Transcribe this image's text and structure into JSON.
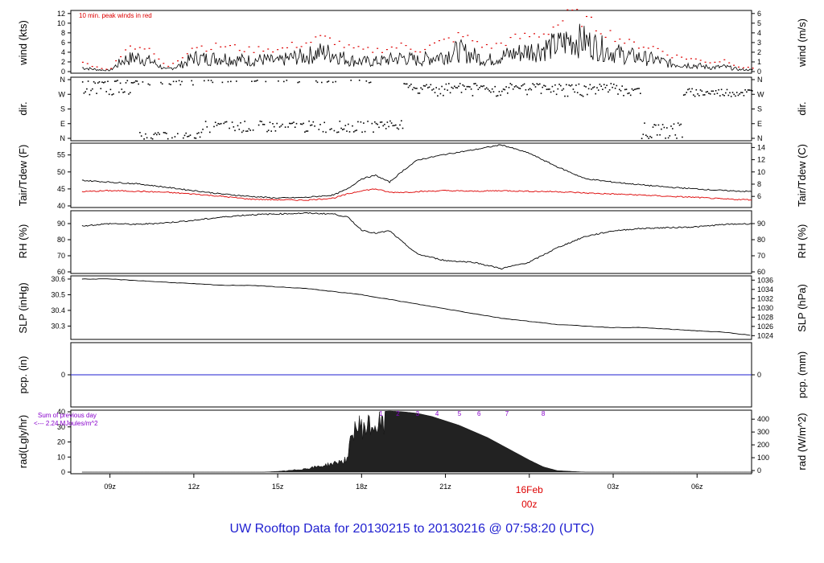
{
  "title": "UW Rooftop Data for 20130215  to  20130216 @ 07:58:20  (UTC)",
  "colors": {
    "title": "#1f1fd0",
    "axis": "#000000",
    "peak": "#dd0000",
    "dew": "#dd0000",
    "precip": "#1f1fd0",
    "solar": "#8800cc",
    "date": "#dd0000"
  },
  "time_axis": {
    "ticks": [
      "09z",
      "12z",
      "15z",
      "18z",
      "21z",
      "00z",
      "03z",
      "06z"
    ],
    "date_label": "16Feb",
    "date_label_tick": "00z"
  },
  "chart_data": [
    {
      "type": "line",
      "panel": "wind",
      "ylabel_left": "wind (kts)",
      "ylabel_right": "wind (m/s)",
      "yticks_left": [
        "0",
        "2",
        "4",
        "6",
        "8",
        "10",
        "12"
      ],
      "yticks_right": [
        "0",
        "1",
        "2",
        "3",
        "4",
        "5",
        "6"
      ],
      "ylim": [
        0,
        12.3
      ],
      "annotation": "10 min. peak winds in red",
      "series": [
        {
          "x_hours": [
            0,
            0.5,
            1,
            1.5,
            2,
            2.5,
            3,
            3.5,
            4,
            4.5,
            5,
            5.5,
            6,
            6.5,
            7,
            7.5,
            8,
            8.5,
            9,
            9.5,
            10,
            10.5,
            11,
            11.5,
            12,
            12.5,
            13,
            13.5,
            14,
            14.5,
            15,
            15.5,
            16,
            16.5,
            17,
            17.5,
            18,
            18.5,
            19,
            19.5,
            20,
            20.5,
            21,
            21.5,
            22,
            22.5,
            23,
            23.5,
            24
          ],
          "values": [
            1,
            0.5,
            0.3,
            3,
            3.5,
            2.5,
            0.5,
            1.5,
            3.5,
            3.2,
            3.5,
            3,
            2.8,
            3,
            2.5,
            3.5,
            3.8,
            4.8,
            4.5,
            3,
            2.5,
            2.5,
            3,
            3.5,
            2.8,
            3.5,
            4.2,
            5.2,
            4,
            2.8,
            3.8,
            4.5,
            5.2,
            5.8,
            6.5,
            8,
            7.5,
            6,
            4.8,
            4,
            3.5,
            3,
            2,
            1.8,
            1.5,
            1,
            1.2,
            0.5,
            0.4
          ]
        },
        {
          "name": "peak",
          "x_hours": [
            0,
            0.5,
            1,
            1.5,
            2,
            2.5,
            3,
            3.5,
            4,
            4.5,
            5,
            5.5,
            6,
            6.5,
            7,
            7.5,
            8,
            8.5,
            9,
            9.5,
            10,
            10.5,
            11,
            11.5,
            12,
            12.5,
            13,
            13.5,
            14,
            14.5,
            15,
            15.5,
            16,
            16.5,
            17,
            17.5,
            18,
            18.5,
            19,
            19.5,
            20,
            20.5,
            21,
            21.5,
            22,
            22.5,
            23,
            23.5,
            24
          ],
          "values": [
            2,
            1,
            0.5,
            5,
            5.5,
            4,
            1,
            3,
            5.5,
            5,
            5.5,
            5,
            4.5,
            5,
            4.5,
            5.5,
            6,
            7,
            6.5,
            5,
            4.5,
            4.5,
            5,
            5.5,
            4.5,
            5.5,
            6.5,
            7.5,
            6.5,
            5,
            6,
            7,
            7.5,
            8,
            10,
            12,
            10.5,
            9,
            7.5,
            6,
            5.5,
            5,
            3.5,
            3,
            2.5,
            2,
            2.5,
            1,
            0.8
          ]
        }
      ]
    },
    {
      "type": "scatter",
      "panel": "dir",
      "ylabel_left": "dir.",
      "ylabel_right": "dir.",
      "yticks": [
        "N",
        "E",
        "S",
        "W",
        "N"
      ],
      "ylim": [
        0,
        360
      ]
    },
    {
      "type": "line",
      "panel": "temperature",
      "ylabel_left": "Tair/Tdew (F)",
      "ylabel_right": "Tair/Tdew (C)",
      "yticks_left": [
        "40",
        "45",
        "50",
        "55"
      ],
      "yticks_right": [
        "6",
        "8",
        "10",
        "12",
        "14"
      ],
      "ylim": [
        40,
        58
      ],
      "series": [
        {
          "name": "Tair",
          "x_hours": [
            0,
            1,
            2,
            3,
            4,
            5,
            6,
            7,
            8,
            9,
            9.5,
            10,
            10.5,
            11,
            11.5,
            12,
            13,
            14,
            15,
            16,
            17,
            18,
            19,
            20,
            21,
            22,
            23,
            24
          ],
          "values": [
            47.5,
            47,
            46.5,
            45.5,
            44.5,
            43.5,
            42.8,
            42.3,
            42.5,
            43.2,
            45,
            48,
            49,
            47,
            50.5,
            53.5,
            55.2,
            56.5,
            58,
            55.5,
            51.5,
            48,
            47,
            46.2,
            45.5,
            45,
            44.5,
            44.2
          ]
        },
        {
          "name": "Tdew",
          "x_hours": [
            0,
            1,
            2,
            3,
            4,
            5,
            6,
            7,
            8,
            9,
            9.5,
            10,
            10.5,
            11,
            11.5,
            12,
            13,
            14,
            15,
            16,
            17,
            18,
            19,
            20,
            21,
            22,
            23,
            24
          ],
          "values": [
            44.2,
            44.5,
            44.3,
            44,
            43.5,
            42.8,
            42,
            41.8,
            41.7,
            42.3,
            43.5,
            44.5,
            45,
            44,
            44,
            44.2,
            44.5,
            44.3,
            44.5,
            44.3,
            44.2,
            43.8,
            43.5,
            43.2,
            42.8,
            42.5,
            42,
            41.8
          ]
        }
      ]
    },
    {
      "type": "line",
      "panel": "rh",
      "ylabel_left": "RH (%)",
      "ylabel_right": "RH (%)",
      "yticks": [
        "60",
        "70",
        "80",
        "90"
      ],
      "ylim": [
        60,
        97
      ],
      "series": [
        {
          "x_hours": [
            0,
            1,
            2,
            3,
            4,
            5,
            6,
            7,
            8,
            9,
            9.5,
            10,
            10.5,
            11,
            11.5,
            12,
            13,
            14,
            15,
            16,
            17,
            18,
            19,
            20,
            21,
            22,
            23,
            24
          ],
          "values": [
            88.5,
            90,
            89.5,
            90.5,
            92,
            94,
            95.5,
            96,
            96.5,
            96,
            94,
            86,
            84,
            85.5,
            78,
            71,
            67,
            66,
            62,
            66,
            75,
            82,
            85.5,
            87,
            87.5,
            88,
            89.5,
            90
          ]
        }
      ]
    },
    {
      "type": "line",
      "panel": "slp",
      "ylabel_left": "SLP (inHg)",
      "ylabel_right": "SLP (hPa)",
      "yticks_left": [
        "30.3",
        "30.4",
        "30.5",
        "30.6"
      ],
      "yticks_right": [
        "1024",
        "1026",
        "1028",
        "1030",
        "1032",
        "1034",
        "1036"
      ],
      "ylim": [
        30.225,
        30.61
      ],
      "series": [
        {
          "x_hours": [
            0,
            1,
            2,
            3,
            4,
            5,
            6,
            7,
            8,
            9,
            10,
            11,
            12,
            13,
            14,
            15,
            16,
            17,
            18,
            19,
            20,
            21,
            22,
            23,
            24
          ],
          "values": [
            30.6,
            30.6,
            30.59,
            30.58,
            30.57,
            30.56,
            30.56,
            30.55,
            30.54,
            30.52,
            30.5,
            30.47,
            30.44,
            30.41,
            30.38,
            30.35,
            30.33,
            30.31,
            30.3,
            30.29,
            30.29,
            30.28,
            30.27,
            30.26,
            30.24
          ]
        }
      ]
    },
    {
      "type": "line",
      "panel": "precip",
      "ylabel_left": "pcp. (in)",
      "ylabel_right": "pcp. (mm)",
      "yticks_left": [
        "0"
      ],
      "yticks_right": [
        "0"
      ],
      "series": [
        {
          "x_hours": [
            0,
            24
          ],
          "values": [
            0,
            0
          ]
        }
      ]
    },
    {
      "type": "area",
      "panel": "radiation",
      "ylabel_left": "rad(Lgly/hr)",
      "ylabel_right": "rad (W/m^2)",
      "yticks_left": [
        "0",
        "10",
        "20",
        "30",
        "40"
      ],
      "yticks_right": [
        "0",
        "100",
        "200",
        "300",
        "400"
      ],
      "ylim": [
        0,
        40
      ],
      "annotations": [
        "Sum of previous day",
        "<--- 2.24 MJoules/m^2"
      ],
      "hour_markers": [
        "1",
        "2",
        "3",
        "4",
        "5",
        "6",
        "7",
        "8"
      ],
      "series": [
        {
          "x_hours": [
            0,
            6.5,
            7,
            7.5,
            8,
            8.5,
            9,
            9.5,
            9.7,
            10,
            10.5,
            11,
            11.5,
            12,
            12.5,
            13,
            13.5,
            14,
            14.5,
            15,
            15.5,
            16,
            16.5,
            17,
            18,
            24
          ],
          "values": [
            0,
            0,
            0.5,
            1.5,
            3,
            5,
            7.5,
            11,
            38,
            39,
            40,
            40.5,
            40,
            39,
            37,
            34,
            31,
            27,
            23,
            18,
            13,
            8,
            3.5,
            1,
            0,
            0
          ]
        }
      ]
    }
  ]
}
